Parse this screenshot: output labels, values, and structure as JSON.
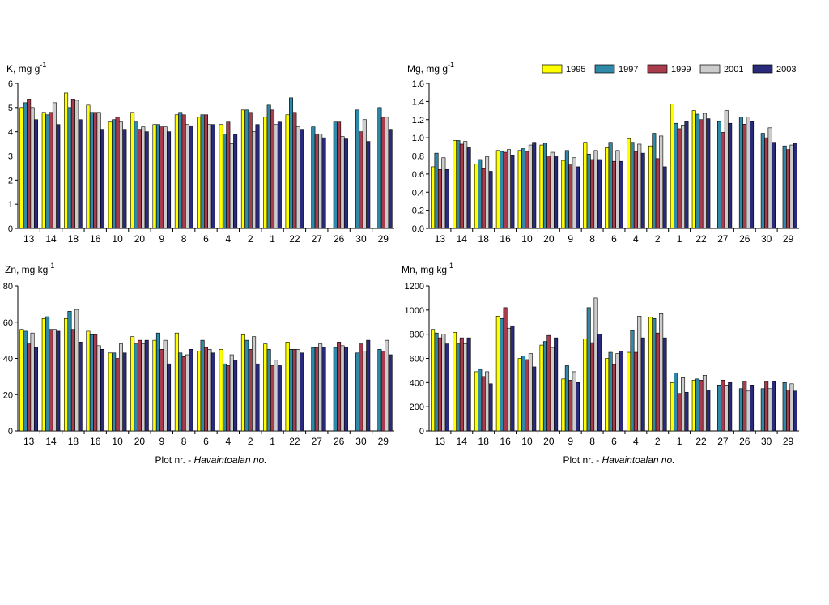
{
  "legend": {
    "years": [
      "1995",
      "1997",
      "1999",
      "2001",
      "2003"
    ],
    "colors": [
      "#ffff00",
      "#2e8aa8",
      "#a83c4c",
      "#cccccc",
      "#2a2a7a"
    ]
  },
  "x_title_main": "Plot nr. - ",
  "x_title_italic": "Havaintoalan no.",
  "chart_data": [
    {
      "type": "bar",
      "ylabel_base": "K, mg g",
      "ylabel_exp": "-1",
      "ylim": [
        0,
        6
      ],
      "yticks": [
        "0",
        "1",
        "2",
        "3",
        "4",
        "5",
        "6"
      ],
      "categories": [
        "13",
        "14",
        "18",
        "16",
        "10",
        "20",
        "9",
        "8",
        "6",
        "4",
        "2",
        "1",
        "22",
        "27",
        "26",
        "30",
        "29"
      ],
      "xlabel": "",
      "series": [
        {
          "name": "1995",
          "values": [
            5.0,
            4.8,
            5.6,
            5.1,
            4.4,
            4.8,
            4.3,
            4.7,
            4.6,
            4.3,
            4.9,
            4.6,
            4.7,
            null,
            null,
            null,
            null
          ]
        },
        {
          "name": "1997",
          "values": [
            5.2,
            4.7,
            5.0,
            4.8,
            4.5,
            4.4,
            4.3,
            4.8,
            4.7,
            3.9,
            4.9,
            5.1,
            5.4,
            4.2,
            4.4,
            4.9,
            5.0
          ]
        },
        {
          "name": "1999",
          "values": [
            5.35,
            4.8,
            5.35,
            4.8,
            4.6,
            4.1,
            4.2,
            4.7,
            4.7,
            4.4,
            4.8,
            4.9,
            4.8,
            3.9,
            4.4,
            4.0,
            4.6
          ]
        },
        {
          "name": "2001",
          "values": [
            5.0,
            5.2,
            5.3,
            4.8,
            4.4,
            4.2,
            4.2,
            4.3,
            4.3,
            3.5,
            4.0,
            4.3,
            4.2,
            3.9,
            3.8,
            4.5,
            4.6
          ]
        },
        {
          "name": "2003",
          "values": [
            4.5,
            4.3,
            4.5,
            4.1,
            4.1,
            4.0,
            4.0,
            4.25,
            4.3,
            3.9,
            4.3,
            4.4,
            4.1,
            3.75,
            3.7,
            3.6,
            4.1
          ]
        }
      ]
    },
    {
      "type": "bar",
      "ylabel_base": "Mg, mg g",
      "ylabel_exp": "-1",
      "ylim": [
        0,
        1.6
      ],
      "yticks": [
        "0.0",
        "0.2",
        "0.4",
        "0.6",
        "0.8",
        "1.0",
        "1.2",
        "1.4",
        "1.6"
      ],
      "categories": [
        "13",
        "14",
        "18",
        "16",
        "10",
        "20",
        "9",
        "8",
        "6",
        "4",
        "2",
        "1",
        "22",
        "27",
        "26",
        "30",
        "29"
      ],
      "xlabel": "",
      "series": [
        {
          "name": "1995",
          "values": [
            0.68,
            0.97,
            0.71,
            0.86,
            0.86,
            0.92,
            0.75,
            0.95,
            0.89,
            0.99,
            0.91,
            1.37,
            1.3,
            null,
            null,
            null,
            null
          ]
        },
        {
          "name": "1997",
          "values": [
            0.83,
            0.97,
            0.76,
            0.85,
            0.88,
            0.94,
            0.86,
            0.82,
            0.95,
            0.95,
            1.05,
            1.16,
            1.26,
            1.18,
            1.23,
            1.05,
            0.91
          ]
        },
        {
          "name": "1999",
          "values": [
            0.65,
            0.93,
            0.66,
            0.84,
            0.85,
            0.8,
            0.7,
            0.76,
            0.74,
            0.85,
            0.77,
            1.1,
            1.2,
            1.06,
            1.15,
            1.0,
            0.87
          ]
        },
        {
          "name": "2001",
          "values": [
            0.78,
            0.96,
            0.79,
            0.87,
            0.92,
            0.84,
            0.78,
            0.86,
            0.86,
            0.93,
            1.02,
            1.14,
            1.27,
            1.3,
            1.23,
            1.11,
            0.92
          ]
        },
        {
          "name": "2003",
          "values": [
            0.65,
            0.89,
            0.63,
            0.81,
            0.95,
            0.8,
            0.68,
            0.76,
            0.74,
            0.83,
            0.68,
            1.18,
            1.21,
            1.16,
            1.18,
            0.95,
            0.94
          ]
        }
      ]
    },
    {
      "type": "bar",
      "ylabel_base": "Zn, mg kg",
      "ylabel_exp": "-1",
      "ylim": [
        0,
        80
      ],
      "yticks": [
        "0",
        "20",
        "40",
        "60",
        "80"
      ],
      "categories": [
        "13",
        "14",
        "18",
        "16",
        "10",
        "20",
        "9",
        "8",
        "6",
        "4",
        "2",
        "1",
        "22",
        "27",
        "26",
        "30",
        "29"
      ],
      "xlabel": "Plot nr. - Havaintoalan no.",
      "series": [
        {
          "name": "1995",
          "values": [
            56,
            62,
            62,
            55,
            43,
            52,
            50,
            54,
            44,
            45,
            53,
            48,
            49,
            null,
            null,
            null,
            null
          ]
        },
        {
          "name": "1997",
          "values": [
            55,
            63,
            66,
            53,
            43,
            48,
            54,
            43,
            50,
            37,
            50,
            45,
            45,
            46,
            46,
            43,
            45
          ]
        },
        {
          "name": "1999",
          "values": [
            48,
            56,
            56,
            53,
            40,
            50,
            45,
            41,
            46,
            36,
            45,
            36,
            45,
            46,
            49,
            48,
            44
          ]
        },
        {
          "name": "2001",
          "values": [
            54,
            56,
            67,
            47,
            48,
            48,
            50,
            42,
            45,
            42,
            52,
            39,
            45,
            48,
            47,
            44,
            50
          ]
        },
        {
          "name": "2003",
          "values": [
            46,
            55,
            49,
            45,
            43,
            50,
            37,
            45,
            43,
            39,
            37,
            36,
            43,
            46,
            46,
            50,
            42
          ]
        }
      ]
    },
    {
      "type": "bar",
      "ylabel_base": "Mn, mg kg",
      "ylabel_exp": "-1",
      "ylim": [
        0,
        1200
      ],
      "yticks": [
        "0",
        "200",
        "400",
        "600",
        "800",
        "1000",
        "1200"
      ],
      "categories": [
        "13",
        "14",
        "18",
        "16",
        "10",
        "20",
        "9",
        "8",
        "6",
        "4",
        "2",
        "1",
        "22",
        "27",
        "26",
        "30",
        "29"
      ],
      "xlabel": "Plot nr. - Havaintoalan no.",
      "series": [
        {
          "name": "1995",
          "values": [
            840,
            815,
            490,
            950,
            600,
            710,
            430,
            760,
            600,
            650,
            940,
            400,
            420,
            null,
            null,
            null,
            null
          ]
        },
        {
          "name": "1997",
          "values": [
            810,
            720,
            510,
            930,
            620,
            740,
            540,
            1020,
            650,
            830,
            930,
            480,
            430,
            380,
            350,
            350,
            400
          ]
        },
        {
          "name": "1999",
          "values": [
            770,
            770,
            450,
            1020,
            590,
            790,
            420,
            730,
            550,
            650,
            810,
            310,
            420,
            420,
            410,
            410,
            340
          ]
        },
        {
          "name": "2001",
          "values": [
            800,
            720,
            490,
            850,
            640,
            690,
            490,
            1100,
            640,
            950,
            970,
            440,
            460,
            380,
            330,
            350,
            390
          ]
        },
        {
          "name": "2003",
          "values": [
            720,
            770,
            390,
            870,
            530,
            770,
            400,
            800,
            660,
            770,
            770,
            320,
            340,
            400,
            380,
            410,
            330
          ]
        }
      ]
    }
  ]
}
